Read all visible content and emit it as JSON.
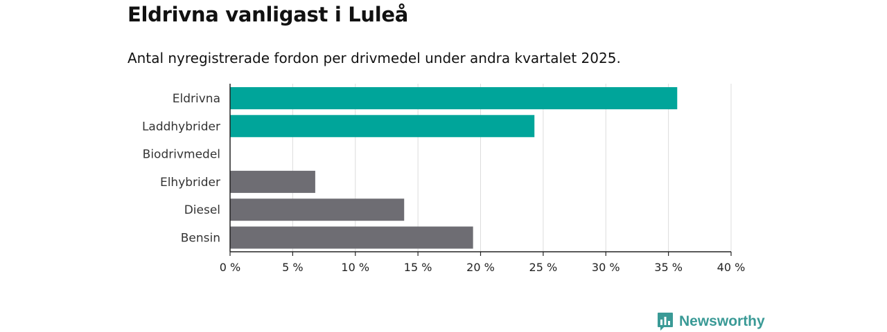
{
  "header": {
    "title": "Eldrivna vanligast i Luleå",
    "subtitle": "Antal nyregistrerade fordon per drivmedel under andra kvartalet 2025."
  },
  "brand": {
    "name": "Newsworthy",
    "icon": "newsworthy-logo-icon",
    "color": "#3a9a96"
  },
  "chart_data": {
    "type": "bar",
    "orientation": "horizontal",
    "categories": [
      "Eldrivna",
      "Laddhybrider",
      "Biodrivmedel",
      "Elhybrider",
      "Diesel",
      "Bensin"
    ],
    "values": [
      35.7,
      24.3,
      0,
      6.8,
      13.9,
      19.4
    ],
    "colors": [
      "#00a59a",
      "#00a59a",
      "#6e6d73",
      "#6e6d73",
      "#6e6d73",
      "#6e6d73"
    ],
    "xlim": [
      0,
      40
    ],
    "xticks": [
      0,
      5,
      10,
      15,
      20,
      25,
      30,
      35,
      40
    ],
    "xtick_labels": [
      "0 %",
      "5 %",
      "10 %",
      "15 %",
      "20 %",
      "25 %",
      "30 %",
      "35 %",
      "40 %"
    ],
    "grid": "vertical",
    "legend": "none"
  }
}
